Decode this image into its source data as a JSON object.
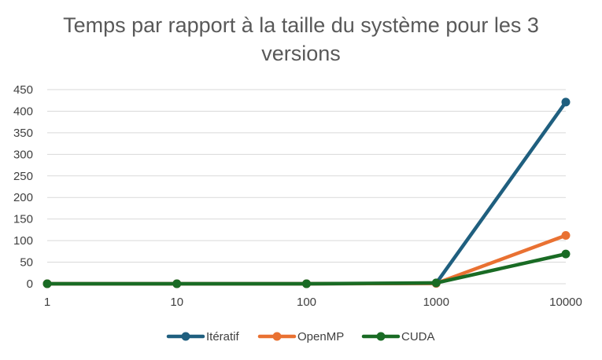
{
  "chart_data": {
    "type": "line",
    "title": "Temps par rapport à la taille du système pour les 3 versions",
    "xlabel": "",
    "ylabel": "",
    "categories": [
      "1",
      "10",
      "100",
      "1000",
      "10000"
    ],
    "ylim": [
      0,
      450
    ],
    "yticks": [
      0,
      50,
      100,
      150,
      200,
      250,
      300,
      350,
      400,
      450
    ],
    "grid": true,
    "legend": "bottom",
    "series": [
      {
        "name": "Itératif",
        "color": "#1f5f7f",
        "values": [
          0,
          0,
          0,
          1,
          421
        ]
      },
      {
        "name": "OpenMP",
        "color": "#e97132",
        "values": [
          0,
          0,
          0,
          1,
          112
        ]
      },
      {
        "name": "CUDA",
        "color": "#196b24",
        "values": [
          0,
          0,
          0,
          2,
          69
        ]
      }
    ]
  }
}
